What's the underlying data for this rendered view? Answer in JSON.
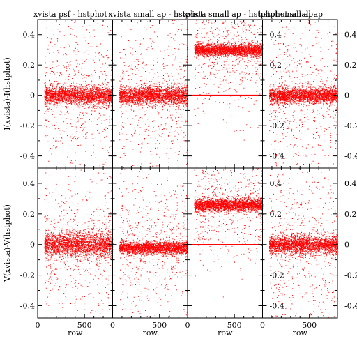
{
  "chart_data": {
    "type": "scatter",
    "titles": [
      "xvista psf - hstphot",
      "xvista small ap - hstphot",
      "xvista small ap - hstphot small ap",
      "hstphot small ap"
    ],
    "ylabels": [
      "I(xvista)-I(hstphot)",
      "V(xvista)-V(hstphot)"
    ],
    "xlabel": "row",
    "xlim": [
      0,
      800
    ],
    "ylim_left": [
      -0.48,
      0.5
    ],
    "xticks": [
      0,
      500
    ],
    "yticks_left": [
      -0.4,
      -0.2,
      0,
      0.2,
      0.4
    ],
    "yticks_right": [
      -0.4,
      -0.2,
      0,
      0.2,
      0.4
    ],
    "right_axis_tick_labels_col3": [
      "0.4",
      "0.2",
      "0",
      "-0.2",
      "-0.4"
    ],
    "right_axis_tick_labels_col4": [
      "0.4",
      "0.2",
      "0",
      "-0.2",
      "-0.4"
    ],
    "color": "#ff0000",
    "panels": [
      {
        "row": "I",
        "col": 1,
        "center": 0.0,
        "spread": 0.03,
        "outlier_scale": 0.25
      },
      {
        "row": "I",
        "col": 2,
        "center": 0.0,
        "spread": 0.03,
        "outlier_scale": 0.3
      },
      {
        "row": "I",
        "col": 3,
        "center": 0.3,
        "spread": 0.02,
        "outlier_scale": 0.2,
        "zero_line": true
      },
      {
        "row": "I",
        "col": 4,
        "center": 0.0,
        "spread": 0.025,
        "outlier_scale": 0.3
      },
      {
        "row": "V",
        "col": 1,
        "center": 0.0,
        "spread": 0.04,
        "outlier_scale": 0.25
      },
      {
        "row": "V",
        "col": 2,
        "center": -0.02,
        "spread": 0.02,
        "outlier_scale": 0.25
      },
      {
        "row": "V",
        "col": 3,
        "center": 0.26,
        "spread": 0.02,
        "outlier_scale": 0.2,
        "zero_line": true
      },
      {
        "row": "V",
        "col": 4,
        "center": 0.0,
        "spread": 0.03,
        "outlier_scale": 0.3
      }
    ]
  }
}
